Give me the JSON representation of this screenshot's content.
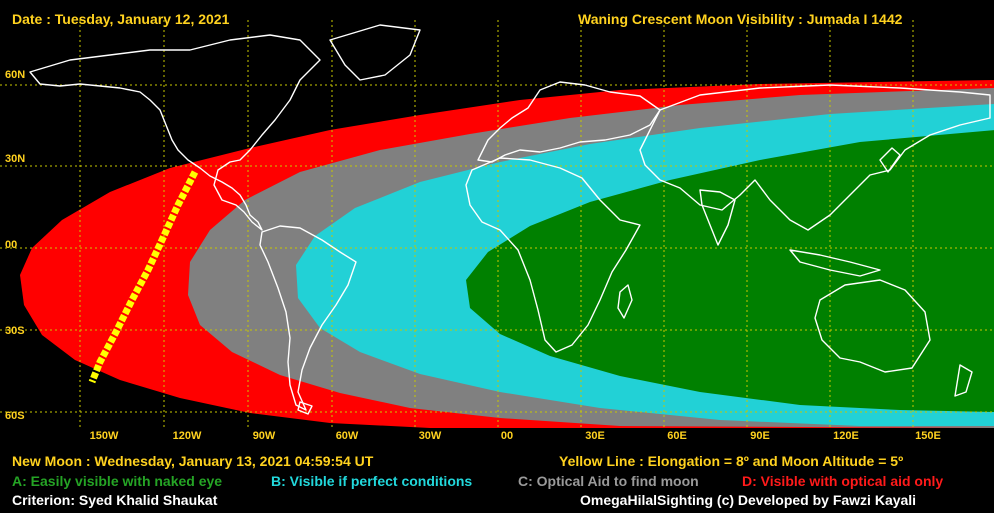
{
  "header": {
    "date_text": "Date : Tuesday, January 12, 2021",
    "title_text": "Waning Crescent Moon Visibility : Jumada I 1442"
  },
  "map": {
    "lat_labels": [
      "60N",
      "30N",
      "00",
      "30S",
      "60S"
    ],
    "lon_labels": [
      "150W",
      "120W",
      "90W",
      "60W",
      "30W",
      "00",
      "30E",
      "60E",
      "90E",
      "120E",
      "150E"
    ],
    "zones": [
      {
        "code": "D",
        "color": "#FF0000"
      },
      {
        "code": "C",
        "color": "#808080"
      },
      {
        "code": "B",
        "color": "#22D1D6"
      },
      {
        "code": "A",
        "color": "#008000"
      }
    ],
    "yellow_line_color": "#FFFF00",
    "coastline_color": "#FFFFFF",
    "grid_color": "#C8C800"
  },
  "footer": {
    "new_moon": "New Moon : Wednesday, January 13, 2021  04:59:54  UT",
    "yellow_line": "Yellow Line : Elongation = 8º  and Moon Altitude = 5º",
    "legend_a": "A: Easily visible with naked eye",
    "legend_b": "B: Visible if perfect conditions",
    "legend_c": "C: Optical Aid to find moon",
    "legend_d": "D: Visible with optical aid only",
    "criterion": "Criterion: Syed Khalid Shaukat",
    "credit": "OmegaHilalSighting  (c)  Developed by Fawzi Kayali"
  }
}
